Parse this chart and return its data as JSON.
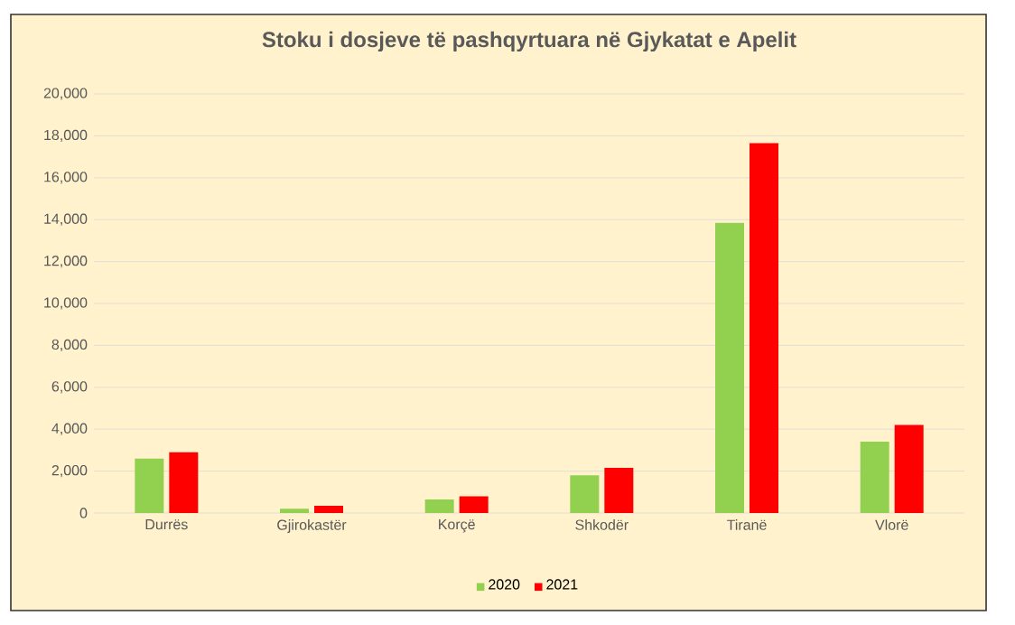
{
  "chart_data": {
    "type": "bar",
    "title": "Stoku i dosjeve të pashqyrtuara në Gjykatat e Apelit",
    "categories": [
      "Durrës",
      "Gjirokastër",
      "Korçë",
      "Shkodër",
      "Tiranë",
      "Vlorë"
    ],
    "series": [
      {
        "name": "2020",
        "color": "#92d050",
        "values": [
          2600,
          200,
          650,
          1800,
          13850,
          3400
        ]
      },
      {
        "name": "2021",
        "color": "#ff0000",
        "values": [
          2900,
          350,
          800,
          2150,
          17650,
          4200
        ]
      }
    ],
    "ylim": [
      0,
      20000
    ],
    "yticks": [
      {
        "value": 0,
        "label": "0"
      },
      {
        "value": 2000,
        "label": "2,000"
      },
      {
        "value": 4000,
        "label": "4,000"
      },
      {
        "value": 6000,
        "label": "6,000"
      },
      {
        "value": 8000,
        "label": "8,000"
      },
      {
        "value": 10000,
        "label": "10,000"
      },
      {
        "value": 12000,
        "label": "12,000"
      },
      {
        "value": 14000,
        "label": "14,000"
      },
      {
        "value": 16000,
        "label": "16,000"
      },
      {
        "value": 18000,
        "label": "18,000"
      },
      {
        "value": 20000,
        "label": "20,000"
      }
    ],
    "grid": "y",
    "legend": "bottom"
  }
}
